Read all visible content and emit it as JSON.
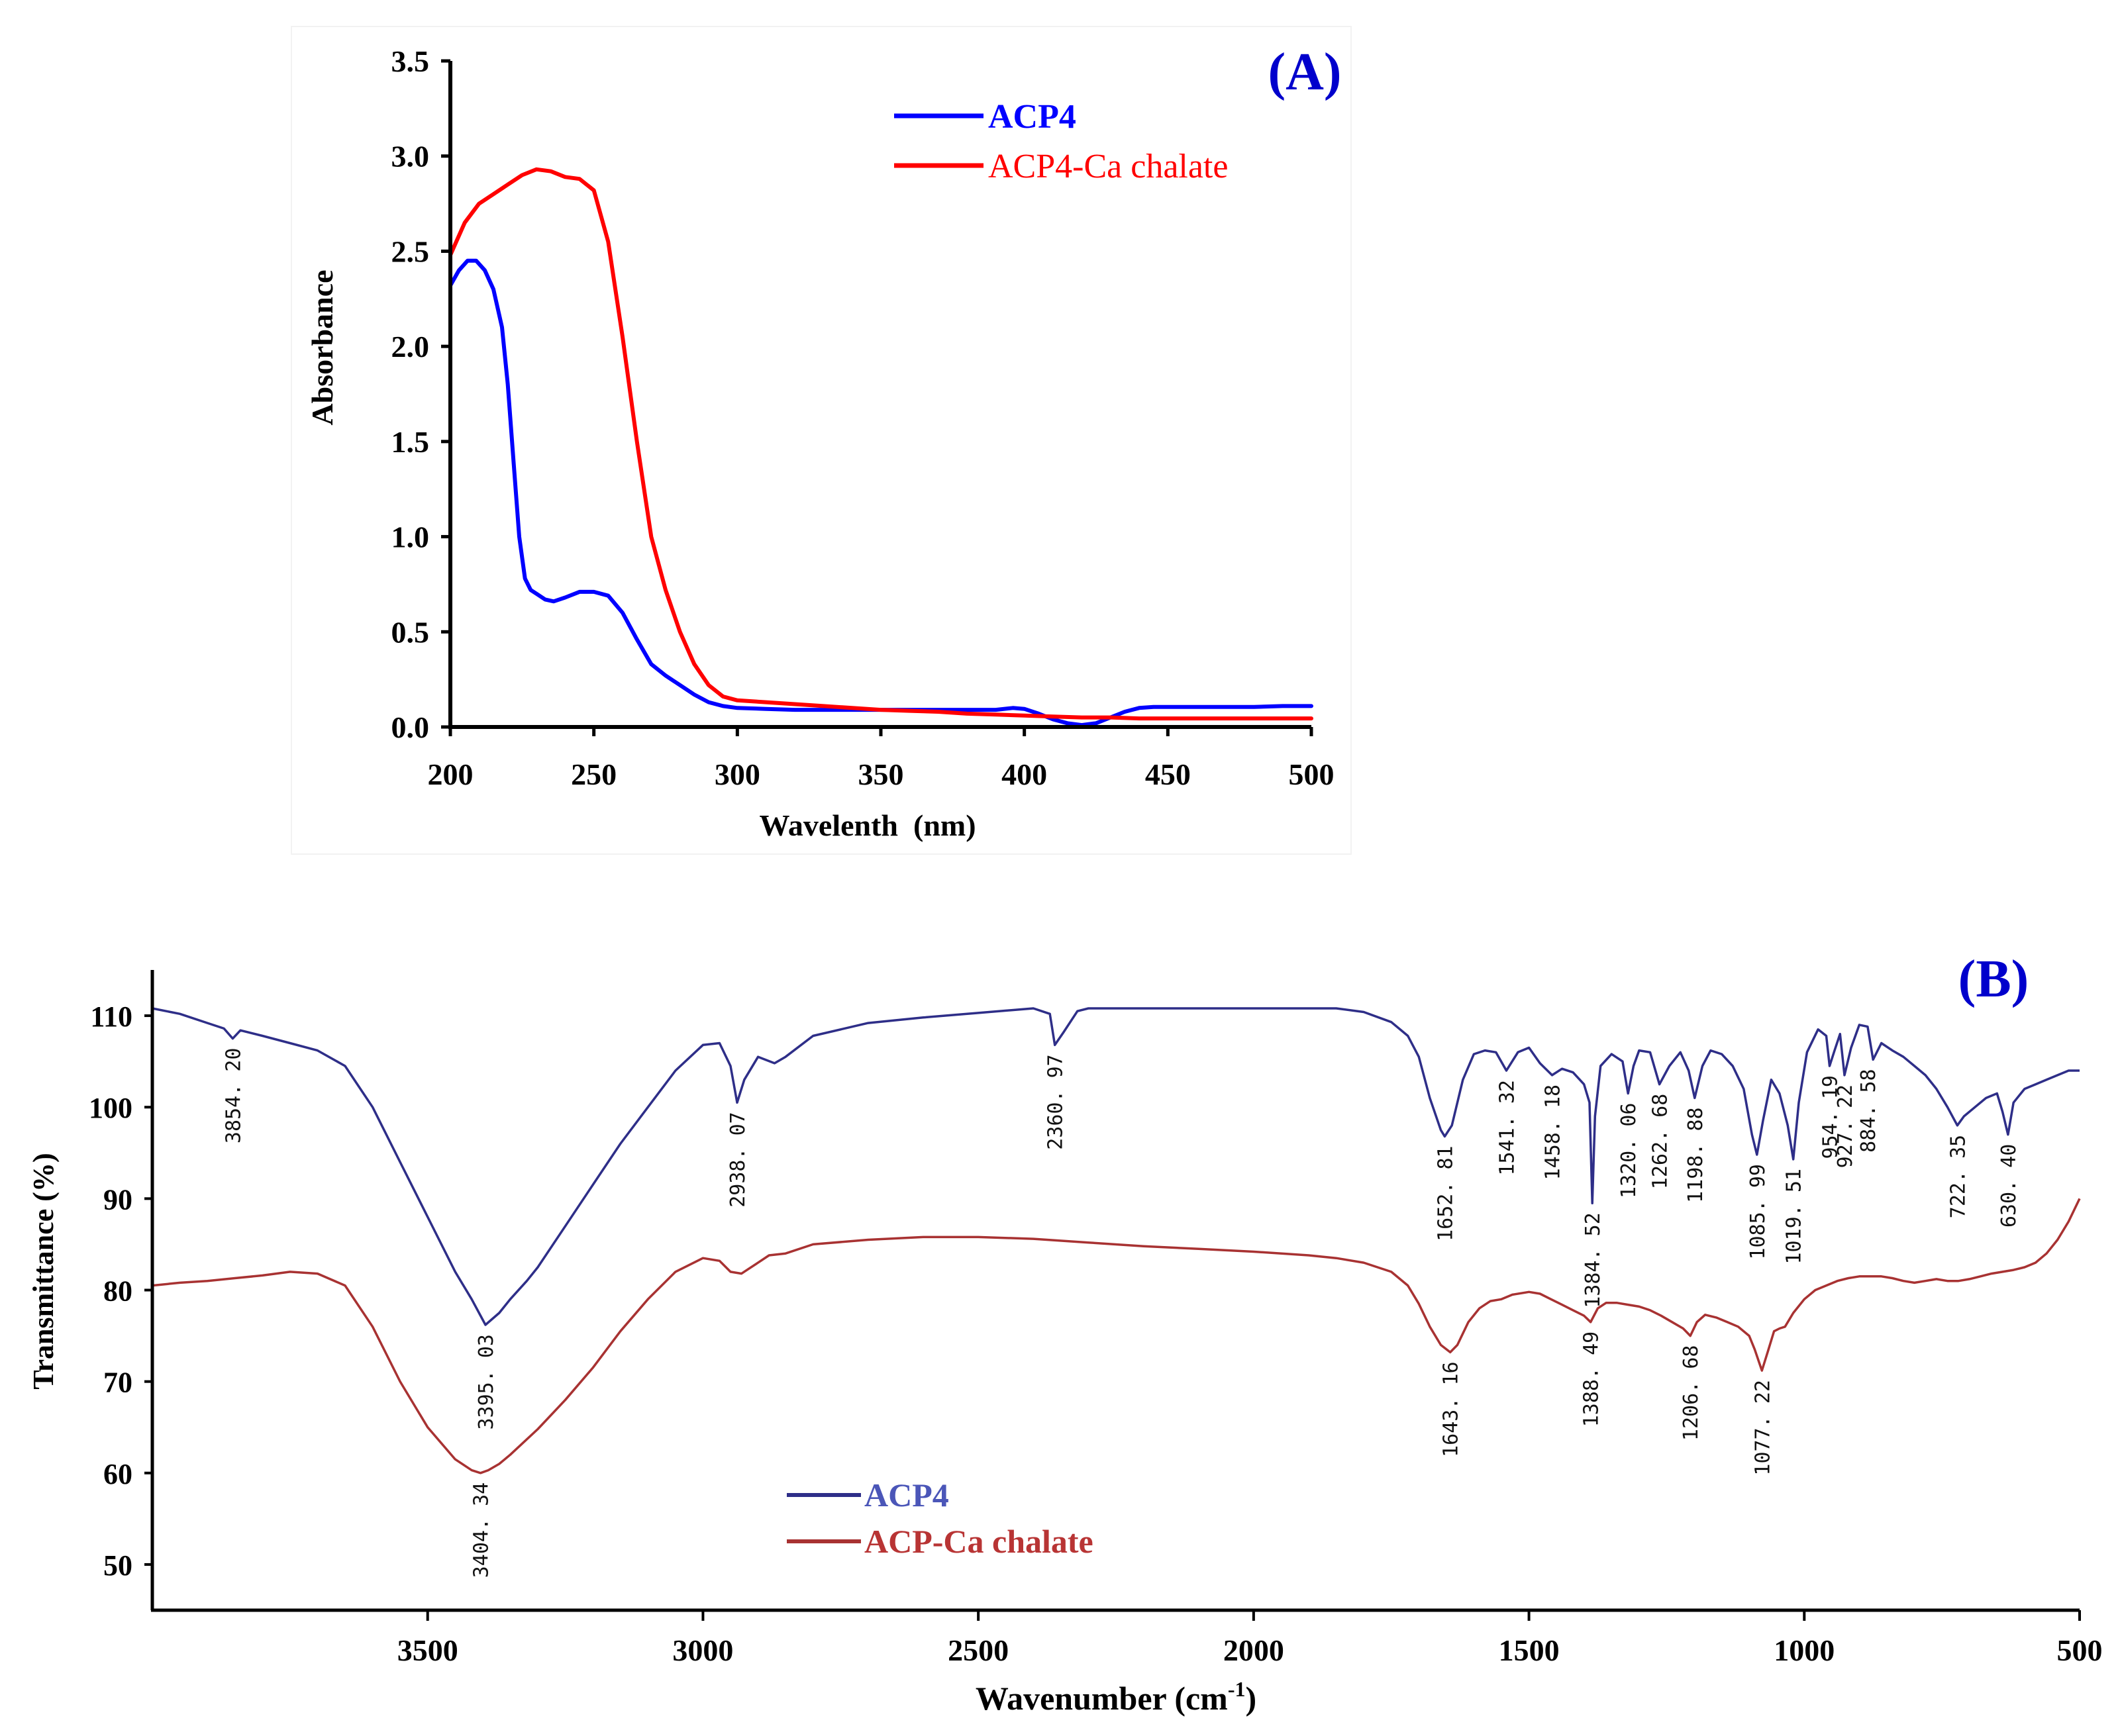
{
  "chart_data": [
    {
      "panel_label": "(A)",
      "type": "line",
      "xlabel": "Wavelenth  (nm)",
      "ylabel": "Absorbance",
      "xlim": [
        200,
        500
      ],
      "ylim": [
        0,
        3.5
      ],
      "xticks": [
        "200",
        "250",
        "300",
        "350",
        "400",
        "450",
        "500"
      ],
      "yticks": [
        "0.0",
        "0.5",
        "1.0",
        "1.5",
        "2.0",
        "2.5",
        "3.0",
        "3.5"
      ],
      "legend_position": "top-right",
      "series": [
        {
          "name": "ACP4",
          "color": "#0000ff",
          "x": [
            200,
            203,
            206,
            209,
            212,
            215,
            218,
            220,
            222,
            224,
            226,
            228,
            230,
            233,
            236,
            240,
            245,
            250,
            255,
            260,
            265,
            270,
            275,
            280,
            285,
            290,
            295,
            300,
            310,
            320,
            330,
            340,
            350,
            360,
            370,
            380,
            390,
            396,
            400,
            405,
            410,
            415,
            420,
            425,
            430,
            435,
            440,
            445,
            450,
            460,
            470,
            480,
            490,
            500
          ],
          "y": [
            2.32,
            2.4,
            2.45,
            2.45,
            2.4,
            2.3,
            2.1,
            1.8,
            1.4,
            1.0,
            0.78,
            0.72,
            0.7,
            0.67,
            0.66,
            0.68,
            0.71,
            0.71,
            0.69,
            0.6,
            0.46,
            0.33,
            0.27,
            0.22,
            0.17,
            0.13,
            0.11,
            0.1,
            0.095,
            0.09,
            0.09,
            0.09,
            0.09,
            0.09,
            0.09,
            0.09,
            0.09,
            0.1,
            0.095,
            0.07,
            0.04,
            0.02,
            0.01,
            0.02,
            0.05,
            0.08,
            0.1,
            0.105,
            0.105,
            0.105,
            0.105,
            0.105,
            0.11,
            0.11
          ]
        },
        {
          "name": "ACP4-Ca chalate",
          "color": "#ff0000",
          "x": [
            200,
            205,
            210,
            215,
            220,
            225,
            230,
            235,
            240,
            245,
            250,
            255,
            260,
            265,
            270,
            275,
            280,
            285,
            290,
            295,
            300,
            310,
            320,
            330,
            340,
            350,
            360,
            370,
            380,
            390,
            400,
            410,
            420,
            430,
            440,
            450,
            460,
            470,
            480,
            490,
            500
          ],
          "y": [
            2.48,
            2.65,
            2.75,
            2.8,
            2.85,
            2.9,
            2.93,
            2.92,
            2.89,
            2.88,
            2.82,
            2.55,
            2.05,
            1.5,
            1.0,
            0.72,
            0.5,
            0.33,
            0.22,
            0.16,
            0.14,
            0.13,
            0.12,
            0.11,
            0.1,
            0.09,
            0.085,
            0.08,
            0.07,
            0.065,
            0.06,
            0.055,
            0.05,
            0.05,
            0.045,
            0.045,
            0.045,
            0.045,
            0.045,
            0.045,
            0.045
          ]
        }
      ]
    },
    {
      "panel_label": "(B)",
      "type": "line",
      "xlabel": "Wavenumber (cm",
      "xlabel_sup": "-1",
      "xlabel_end": ")",
      "ylabel": "Transmittance (%)",
      "xlim": [
        4000,
        500
      ],
      "ylim": [
        45,
        115
      ],
      "xticks": [
        "3500",
        "3000",
        "2500",
        "2000",
        "1500",
        "1000",
        "500"
      ],
      "yticks": [
        "50",
        "60",
        "70",
        "80",
        "90",
        "100",
        "110"
      ],
      "legend_position": "bottom-left",
      "series": [
        {
          "name": "ACP4",
          "color": "#2e2e88",
          "x": [
            4000,
            3950,
            3900,
            3870,
            3854,
            3840,
            3800,
            3750,
            3700,
            3650,
            3600,
            3550,
            3500,
            3450,
            3420,
            3395,
            3370,
            3350,
            3320,
            3300,
            3250,
            3200,
            3150,
            3100,
            3050,
            3000,
            2970,
            2950,
            2938,
            2925,
            2900,
            2870,
            2850,
            2800,
            2700,
            2600,
            2500,
            2400,
            2370,
            2361,
            2345,
            2320,
            2300,
            2200,
            2100,
            2000,
            1900,
            1850,
            1800,
            1750,
            1720,
            1700,
            1680,
            1660,
            1653,
            1640,
            1620,
            1600,
            1580,
            1560,
            1541,
            1520,
            1500,
            1480,
            1458,
            1440,
            1420,
            1400,
            1390,
            1385,
            1380,
            1370,
            1350,
            1330,
            1320,
            1310,
            1300,
            1280,
            1263,
            1245,
            1225,
            1210,
            1199,
            1185,
            1170,
            1150,
            1130,
            1110,
            1095,
            1086,
            1075,
            1060,
            1045,
            1030,
            1020,
            1010,
            995,
            975,
            960,
            954,
            945,
            935,
            927,
            915,
            900,
            885,
            875,
            860,
            840,
            820,
            800,
            780,
            760,
            740,
            722,
            710,
            690,
            670,
            650,
            640,
            630,
            620,
            600,
            580,
            560,
            540,
            520,
            500
          ],
          "y": [
            110.8,
            110.2,
            109.2,
            108.6,
            107.5,
            108.4,
            107.8,
            107.0,
            106.2,
            104.5,
            100.0,
            94.0,
            88.0,
            82.0,
            79.0,
            76.2,
            77.5,
            79.0,
            81.0,
            82.5,
            87.0,
            91.5,
            96.0,
            100.0,
            104.0,
            106.8,
            107.0,
            104.5,
            100.5,
            103.0,
            105.5,
            104.8,
            105.5,
            107.8,
            109.2,
            109.8,
            110.3,
            110.8,
            110.2,
            106.8,
            108.2,
            110.5,
            110.8,
            110.8,
            110.8,
            110.8,
            110.8,
            110.8,
            110.4,
            109.3,
            107.8,
            105.5,
            101.0,
            97.5,
            96.8,
            98.0,
            103.0,
            105.8,
            106.2,
            106.0,
            104.0,
            106.0,
            106.5,
            104.8,
            103.5,
            104.2,
            103.8,
            102.5,
            100.5,
            89.5,
            99.0,
            104.5,
            105.8,
            105.0,
            101.5,
            104.5,
            106.2,
            106.0,
            102.5,
            104.5,
            106.0,
            104.0,
            101.0,
            104.5,
            106.2,
            105.8,
            104.5,
            102.0,
            97.0,
            94.8,
            98.5,
            103.0,
            101.5,
            98.0,
            94.3,
            100.5,
            106.0,
            108.5,
            107.8,
            104.5,
            106.2,
            108.0,
            103.5,
            106.5,
            109.0,
            108.8,
            105.2,
            107.0,
            106.2,
            105.5,
            104.5,
            103.5,
            102.0,
            100.0,
            98.0,
            99.0,
            100.0,
            101.0,
            101.5,
            99.5,
            97.0,
            100.5,
            102.0,
            102.5,
            103.0,
            103.5,
            104.0,
            104.0
          ]
        },
        {
          "name": "ACP-Ca chalate",
          "color": "#a83232",
          "x": [
            4000,
            3950,
            3900,
            3850,
            3800,
            3750,
            3700,
            3650,
            3600,
            3550,
            3500,
            3450,
            3420,
            3404,
            3390,
            3370,
            3350,
            3300,
            3250,
            3200,
            3150,
            3100,
            3050,
            3000,
            2970,
            2950,
            2930,
            2920,
            2900,
            2880,
            2850,
            2800,
            2700,
            2600,
            2500,
            2400,
            2300,
            2200,
            2100,
            2000,
            1900,
            1850,
            1800,
            1750,
            1720,
            1700,
            1680,
            1660,
            1643,
            1630,
            1610,
            1590,
            1570,
            1550,
            1530,
            1500,
            1480,
            1460,
            1440,
            1420,
            1400,
            1388,
            1375,
            1360,
            1340,
            1320,
            1300,
            1280,
            1260,
            1240,
            1220,
            1207,
            1195,
            1180,
            1160,
            1140,
            1120,
            1100,
            1090,
            1077,
            1065,
            1055,
            1045,
            1035,
            1020,
            1000,
            980,
            960,
            940,
            920,
            900,
            880,
            860,
            840,
            820,
            800,
            780,
            760,
            740,
            720,
            700,
            680,
            660,
            640,
            620,
            600,
            580,
            560,
            540,
            520,
            500
          ],
          "y": [
            80.5,
            80.8,
            81.0,
            81.3,
            81.6,
            82.0,
            81.8,
            80.5,
            76.0,
            70.0,
            65.0,
            61.5,
            60.3,
            60.0,
            60.3,
            61.0,
            62.0,
            64.8,
            68.0,
            71.5,
            75.5,
            79.0,
            82.0,
            83.5,
            83.2,
            82.0,
            81.8,
            82.2,
            83.0,
            83.8,
            84.0,
            85.0,
            85.5,
            85.8,
            85.8,
            85.6,
            85.2,
            84.8,
            84.5,
            84.2,
            83.8,
            83.5,
            83.0,
            82.0,
            80.5,
            78.5,
            76.0,
            74.0,
            73.2,
            74.0,
            76.5,
            78.0,
            78.8,
            79.0,
            79.5,
            79.8,
            79.6,
            79.0,
            78.4,
            77.8,
            77.2,
            76.5,
            78.0,
            78.6,
            78.6,
            78.4,
            78.2,
            77.8,
            77.2,
            76.5,
            75.8,
            75.0,
            76.5,
            77.3,
            77.0,
            76.5,
            76.0,
            75.0,
            73.5,
            71.2,
            73.5,
            75.5,
            75.8,
            76.0,
            77.5,
            79.0,
            80.0,
            80.5,
            81.0,
            81.3,
            81.5,
            81.5,
            81.5,
            81.3,
            81.0,
            80.8,
            81.0,
            81.2,
            81.0,
            81.0,
            81.2,
            81.5,
            81.8,
            82.0,
            82.2,
            82.5,
            83.0,
            84.0,
            85.5,
            87.5,
            90.0
          ]
        }
      ],
      "peak_labels": [
        {
          "text": "3854. 20",
          "x": 3854,
          "y": 107.5
        },
        {
          "text": "3395. 03",
          "x": 3395,
          "y": 76.2
        },
        {
          "text": "2938. 07",
          "x": 2938,
          "y": 100.5
        },
        {
          "text": "2360. 97",
          "x": 2361,
          "y": 106.8
        },
        {
          "text": "1652. 81",
          "x": 1653,
          "y": 96.8
        },
        {
          "text": "1541. 32",
          "x": 1541,
          "y": 104.0
        },
        {
          "text": "1458. 18",
          "x": 1458,
          "y": 103.5
        },
        {
          "text": "1384. 52",
          "x": 1385,
          "y": 89.5
        },
        {
          "text": "1320. 06",
          "x": 1320,
          "y": 101.5
        },
        {
          "text": "1262. 68",
          "x": 1263,
          "y": 102.5
        },
        {
          "text": "1198. 88",
          "x": 1199,
          "y": 101.0
        },
        {
          "text": "1085. 99",
          "x": 1086,
          "y": 94.8
        },
        {
          "text": "1019. 51",
          "x": 1020,
          "y": 94.3
        },
        {
          "text": "954. 19",
          "x": 954,
          "y": 104.5
        },
        {
          "text": "927. 22",
          "x": 927,
          "y": 103.5
        },
        {
          "text": "884. 58",
          "x": 885,
          "y": 105.2
        },
        {
          "text": "722. 35",
          "x": 722,
          "y": 98.0
        },
        {
          "text": "630. 40",
          "x": 630,
          "y": 97.0
        },
        {
          "text": "3404. 34",
          "x": 3404,
          "y": 60.0
        },
        {
          "text": "1643. 16",
          "x": 1643,
          "y": 73.2
        },
        {
          "text": "1388. 49",
          "x": 1388,
          "y": 76.5
        },
        {
          "text": "1206. 68",
          "x": 1207,
          "y": 75.0
        },
        {
          "text": "1077. 22",
          "x": 1077,
          "y": 71.2
        }
      ]
    }
  ]
}
